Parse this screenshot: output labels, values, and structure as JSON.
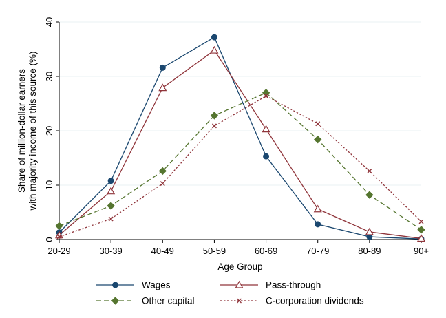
{
  "chart_data": {
    "type": "line",
    "title": "",
    "xlabel": "Age Group",
    "ylabel_lines": [
      "Share of million-dollar earners",
      "with majority income of this source (%)"
    ],
    "categories": [
      "20-29",
      "30-39",
      "40-49",
      "50-59",
      "60-69",
      "70-79",
      "80-89",
      "90+"
    ],
    "ylim": [
      0,
      40
    ],
    "yticks": [
      0,
      10,
      20,
      30,
      40
    ],
    "grid": true,
    "legend_position": "bottom",
    "series": [
      {
        "name": "Wages",
        "color": "#1a476f",
        "line": "solid",
        "marker": "circle",
        "values": [
          1.3,
          10.8,
          31.6,
          37.2,
          15.3,
          2.8,
          0.5,
          0.1
        ]
      },
      {
        "name": "Pass-through",
        "color": "#90353b",
        "line": "solid",
        "marker": "triangle-open",
        "values": [
          0.8,
          8.9,
          27.9,
          34.8,
          20.3,
          5.6,
          1.4,
          0.2
        ]
      },
      {
        "name": "Other capital",
        "color": "#55752f",
        "line": "dashed",
        "marker": "diamond",
        "values": [
          2.5,
          6.2,
          12.6,
          22.8,
          27.0,
          18.4,
          8.2,
          1.8
        ]
      },
      {
        "name": "C-corporation dividends",
        "color": "#90353b",
        "line": "dotted",
        "marker": "x",
        "values": [
          0.5,
          3.8,
          10.3,
          20.9,
          26.4,
          21.3,
          12.6,
          3.3
        ]
      }
    ]
  }
}
